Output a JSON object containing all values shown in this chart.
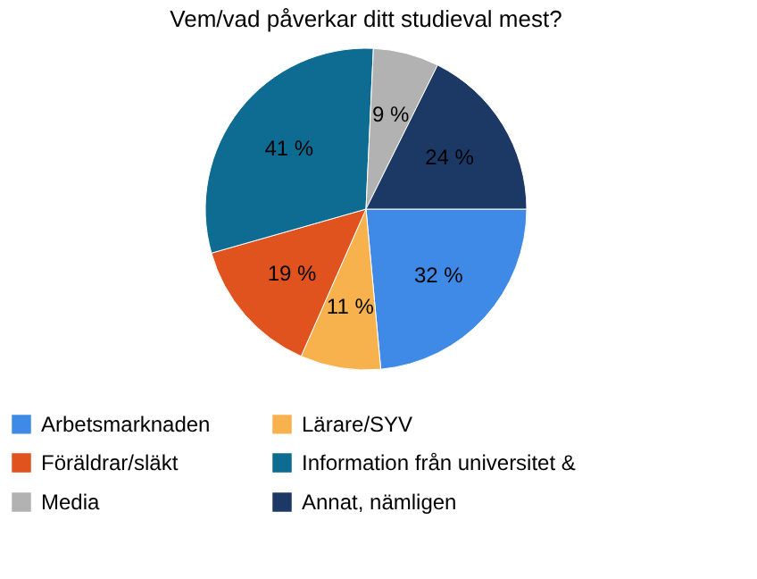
{
  "chart_data": {
    "type": "pie",
    "title": "Vem/vad påverkar ditt studieval mest?",
    "categories": [
      "Arbetsmarknaden",
      "Lärare/SYV",
      "Föräldrar/släkt",
      "Information från universitet &",
      "Media",
      "Annat, nämligen"
    ],
    "values": [
      32,
      11,
      19,
      41,
      9,
      24
    ],
    "value_labels": [
      "32 %",
      "11 %",
      "19 %",
      "41 %",
      "9 %",
      "24 %"
    ],
    "colors": [
      "#3f8ae6",
      "#f7b24e",
      "#e0521e",
      "#0e6b92",
      "#b2b2b2",
      "#1c3966"
    ],
    "legend": "bottom"
  }
}
